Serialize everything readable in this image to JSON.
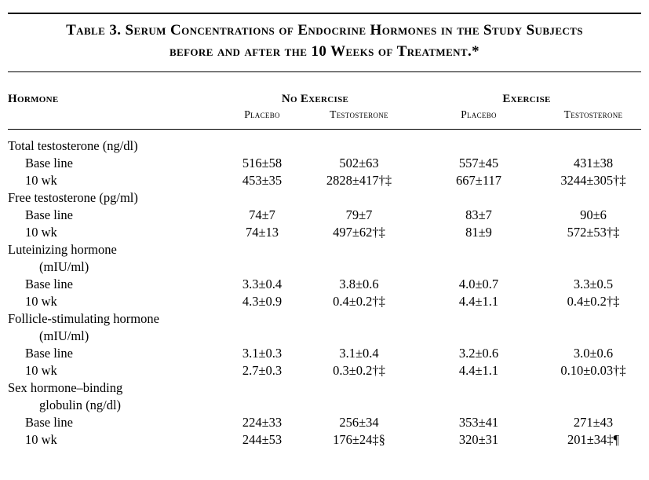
{
  "title": {
    "line1": "Table 3. Serum Concentrations of Endocrine Hormones in the Study Subjects",
    "line2": "before and after the 10 Weeks of Treatment.*"
  },
  "header": {
    "hormone": "Hormone",
    "no_exercise": "No Exercise",
    "exercise": "Exercise",
    "subcolumns": [
      "Placebo",
      "Testosterone",
      "Placebo",
      "Testosterone"
    ]
  },
  "rows": [
    {
      "label": "Total testosterone (ng/dl)"
    },
    {
      "label": "Base line",
      "values": [
        "516±58",
        "502±63",
        "557±45",
        "431±38"
      ]
    },
    {
      "label": "10 wk",
      "values": [
        "453±35",
        "2828±417†‡",
        "667±117",
        "3244±305†‡"
      ]
    },
    {
      "label": "Free testosterone (pg/ml)"
    },
    {
      "label": "Base line",
      "values": [
        "74±7",
        "79±7",
        "83±7",
        "90±6"
      ]
    },
    {
      "label": "10 wk",
      "values": [
        "74±13",
        "497±62†‡",
        "81±9",
        "572±53†‡"
      ]
    },
    {
      "label": "Luteinizing hormone"
    },
    {
      "label": "(mIU/ml)"
    },
    {
      "label": "Base line",
      "values": [
        "3.3±0.4",
        "3.8±0.6",
        "4.0±0.7",
        "3.3±0.5"
      ]
    },
    {
      "label": "10 wk",
      "values": [
        "4.3±0.9",
        "0.4±0.2†‡",
        "4.4±1.1",
        "0.4±0.2†‡"
      ]
    },
    {
      "label": "Follicle-stimulating hormone"
    },
    {
      "label": "(mIU/ml)"
    },
    {
      "label": "Base line",
      "values": [
        "3.1±0.3",
        "3.1±0.4",
        "3.2±0.6",
        "3.0±0.6"
      ]
    },
    {
      "label": "10 wk",
      "values": [
        "2.7±0.3",
        "0.3±0.2†‡",
        "4.4±1.1",
        "0.10±0.03†‡"
      ]
    },
    {
      "label": "Sex hormone–binding"
    },
    {
      "label": "globulin (ng/dl)"
    },
    {
      "label": "Base line",
      "values": [
        "224±33",
        "256±34",
        "353±41",
        "271±43"
      ]
    },
    {
      "label": "10 wk",
      "values": [
        "244±53",
        "176±24‡§",
        "320±31",
        "201±34‡¶"
      ]
    }
  ]
}
